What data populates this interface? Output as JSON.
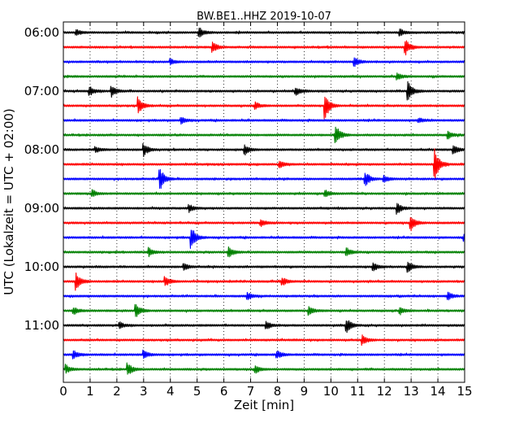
{
  "chart_data": {
    "type": "line",
    "title": "BW.BE1..HHZ 2019-10-07",
    "xlabel": "Zeit  [min]",
    "ylabel": "UTC (Lokalzeit = UTC + 02:00)",
    "xlim": [
      0,
      15
    ],
    "x_ticks": [
      "0",
      "1",
      "2",
      "3",
      "4",
      "5",
      "6",
      "7",
      "8",
      "9",
      "10",
      "11",
      "12",
      "13",
      "14",
      "15"
    ],
    "y_ticks": [
      "06:00",
      "07:00",
      "08:00",
      "09:00",
      "10:00",
      "11:00"
    ],
    "row_interval_minutes": 15,
    "grid": "vertical dotted",
    "trace_colors": [
      "#000000",
      "#ff0000",
      "#0000ff",
      "#008000"
    ],
    "traces": [
      {
        "start": "06:00",
        "events": [
          [
            0.5,
            0.25
          ],
          [
            5.1,
            0.4
          ],
          [
            12.6,
            0.3
          ]
        ]
      },
      {
        "start": "06:15",
        "events": [
          [
            5.6,
            0.5
          ],
          [
            12.8,
            0.7
          ]
        ]
      },
      {
        "start": "06:30",
        "events": [
          [
            10.9,
            0.4
          ],
          [
            4.0,
            0.25
          ]
        ]
      },
      {
        "start": "06:45",
        "events": [
          [
            12.5,
            0.3
          ]
        ]
      },
      {
        "start": "07:00",
        "events": [
          [
            1.0,
            0.4
          ],
          [
            1.8,
            0.5
          ],
          [
            8.7,
            0.35
          ],
          [
            12.9,
            0.9
          ]
        ]
      },
      {
        "start": "07:15",
        "events": [
          [
            2.8,
            0.8
          ],
          [
            7.2,
            0.3
          ],
          [
            9.8,
            1.2
          ]
        ]
      },
      {
        "start": "07:30",
        "events": [
          [
            4.4,
            0.3
          ],
          [
            13.3,
            0.2
          ]
        ]
      },
      {
        "start": "07:45",
        "events": [
          [
            10.2,
            0.9
          ],
          [
            14.4,
            0.3
          ]
        ]
      },
      {
        "start": "08:00",
        "events": [
          [
            1.2,
            0.3
          ],
          [
            3.0,
            0.6
          ],
          [
            6.8,
            0.4
          ],
          [
            14.6,
            0.4
          ]
        ]
      },
      {
        "start": "08:15",
        "events": [
          [
            8.1,
            0.3
          ],
          [
            13.9,
            1.4
          ]
        ]
      },
      {
        "start": "08:30",
        "events": [
          [
            3.6,
            1.2
          ],
          [
            11.3,
            0.6
          ],
          [
            12.0,
            0.3
          ]
        ]
      },
      {
        "start": "08:45",
        "events": [
          [
            1.1,
            0.3
          ],
          [
            9.8,
            0.3
          ]
        ]
      },
      {
        "start": "09:00",
        "events": [
          [
            4.7,
            0.35
          ],
          [
            12.5,
            0.5
          ]
        ]
      },
      {
        "start": "09:15",
        "events": [
          [
            7.4,
            0.3
          ],
          [
            13.0,
            0.7
          ]
        ]
      },
      {
        "start": "09:30",
        "events": [
          [
            4.8,
            0.95
          ],
          [
            15.0,
            0.4
          ]
        ]
      },
      {
        "start": "09:45",
        "events": [
          [
            3.2,
            0.4
          ],
          [
            6.2,
            0.45
          ],
          [
            10.6,
            0.4
          ]
        ]
      },
      {
        "start": "10:00",
        "events": [
          [
            4.5,
            0.3
          ],
          [
            11.6,
            0.3
          ],
          [
            12.9,
            0.5
          ]
        ]
      },
      {
        "start": "10:15",
        "events": [
          [
            0.5,
            0.8
          ],
          [
            3.8,
            0.5
          ],
          [
            8.2,
            0.35
          ]
        ]
      },
      {
        "start": "10:30",
        "events": [
          [
            6.9,
            0.3
          ],
          [
            14.4,
            0.3
          ]
        ]
      },
      {
        "start": "10:45",
        "events": [
          [
            0.4,
            0.3
          ],
          [
            2.7,
            0.8
          ],
          [
            9.2,
            0.35
          ],
          [
            12.6,
            0.3
          ]
        ]
      },
      {
        "start": "11:00",
        "events": [
          [
            2.1,
            0.3
          ],
          [
            7.6,
            0.35
          ],
          [
            10.6,
            0.6
          ]
        ]
      },
      {
        "start": "11:15",
        "events": [
          [
            11.2,
            0.45
          ]
        ]
      },
      {
        "start": "11:30",
        "events": [
          [
            0.4,
            0.35
          ],
          [
            3.0,
            0.4
          ],
          [
            8.0,
            0.35
          ]
        ]
      },
      {
        "start": "11:45",
        "events": [
          [
            0.1,
            0.4
          ],
          [
            2.4,
            0.65
          ],
          [
            7.2,
            0.3
          ]
        ]
      }
    ]
  }
}
